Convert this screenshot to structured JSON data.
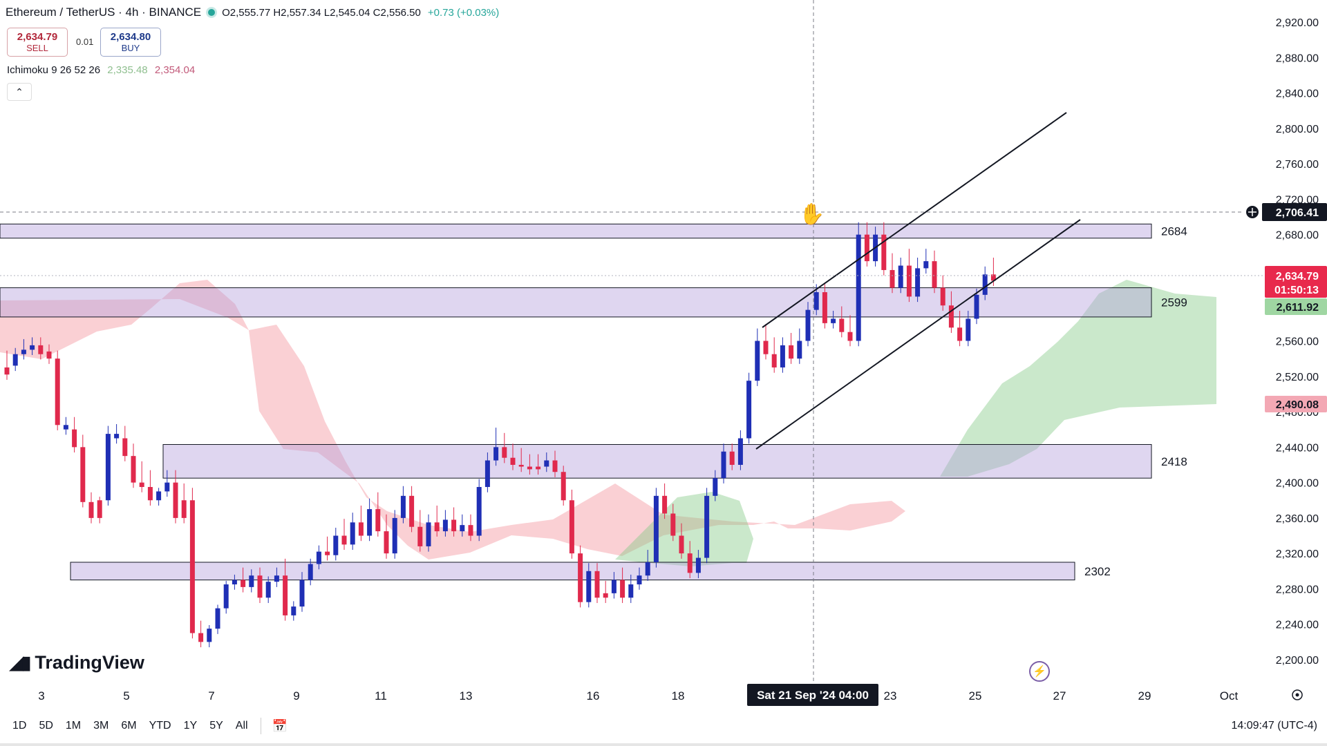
{
  "header": {
    "symbol": "Ethereum / TetherUS · 4h · BINANCE",
    "ohlc": "O2,555.77  H2,557.34  L2,545.04  C2,556.50",
    "change": "+0.73 (+0.03%)"
  },
  "trade": {
    "sell_price": "2,634.79",
    "sell_label": "SELL",
    "buy_price": "2,634.80",
    "buy_label": "BUY",
    "spread": "0.01"
  },
  "indicator": {
    "name": "Ichimoku 9 26 52 26",
    "value1": "2,335.48",
    "value2": "2,354.04"
  },
  "icons": {
    "collapse": "chevron-up-icon",
    "logo": "tradingview-logo",
    "calendar": "calendar-icon",
    "settings": "gear-icon",
    "flash": "lightning-icon",
    "crosshair": "crosshair-plus-icon",
    "hand": "hand-cursor-icon"
  },
  "logo_text": "TradingView",
  "price_axis": {
    "ticks": [
      "2,920.00",
      "2,880.00",
      "2,840.00",
      "2,800.00",
      "2,760.00",
      "2,720.00",
      "2,680.00",
      "2,640.00",
      "2,600.00",
      "2,560.00",
      "2,520.00",
      "2,480.00",
      "2,440.00",
      "2,400.00",
      "2,360.00",
      "2,320.00",
      "2,280.00",
      "2,240.00",
      "2,200.00"
    ],
    "crosshair_label": "2,706.41",
    "last_price": "2,634.79",
    "countdown": "01:50:13",
    "cloud_a": "2,611.92",
    "cloud_b": "2,490.08",
    "colors": {
      "last": "#e8294c",
      "cloud_a": "#9fd6a2",
      "cloud_b": "#f3a8b4"
    }
  },
  "time_axis": {
    "ticks": [
      "3",
      "5",
      "7",
      "9",
      "11",
      "13",
      "16",
      "18",
      "23",
      "25",
      "27",
      "29",
      "Oct"
    ],
    "crosshair_label": "Sat 21 Sep '24   04:00"
  },
  "zones": [
    {
      "label": "2684",
      "low": 2676,
      "high": 2692
    },
    {
      "label": "2599",
      "low": 2587,
      "high": 2620
    },
    {
      "label": "2418",
      "low": 2405,
      "high": 2443
    },
    {
      "label": "2302",
      "low": 2290,
      "high": 2310
    }
  ],
  "bottombar": {
    "timeframes": [
      "1D",
      "5D",
      "1M",
      "3M",
      "6M",
      "YTD",
      "1Y",
      "5Y",
      "All"
    ],
    "clock": "14:09:47 (UTC-4)"
  }
}
